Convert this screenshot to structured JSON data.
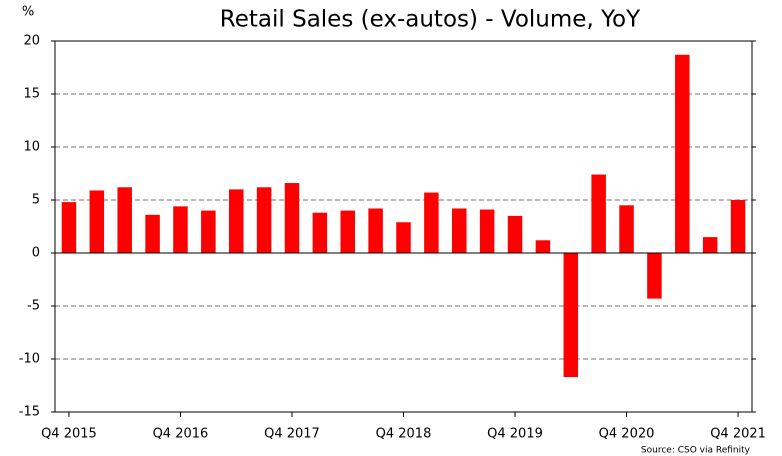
{
  "chart_data": {
    "type": "bar",
    "title": "Retail Sales  (ex-autos) - Volume, YoY",
    "y_label": "%",
    "source": "Source: CSO via Refinity",
    "categories": [
      "Q4 2015",
      null,
      null,
      null,
      "Q4 2016",
      null,
      null,
      null,
      "Q4 2017",
      null,
      null,
      null,
      "Q4 2018",
      null,
      null,
      null,
      "Q4 2019",
      null,
      null,
      null,
      "Q4 2020",
      null,
      null,
      null,
      "Q4 2021"
    ],
    "values": [
      4.8,
      5.9,
      6.2,
      3.6,
      4.4,
      4.0,
      6.0,
      6.2,
      6.6,
      3.8,
      4.0,
      4.2,
      2.9,
      5.7,
      4.2,
      4.1,
      3.5,
      1.2,
      -11.7,
      7.4,
      4.5,
      -4.3,
      18.7,
      1.5,
      5.0
    ],
    "color": "#ff0000",
    "ylim": [
      -15,
      20
    ],
    "yticks": [
      -15,
      -10,
      -5,
      0,
      5,
      10,
      15,
      20
    ],
    "grid": true
  }
}
